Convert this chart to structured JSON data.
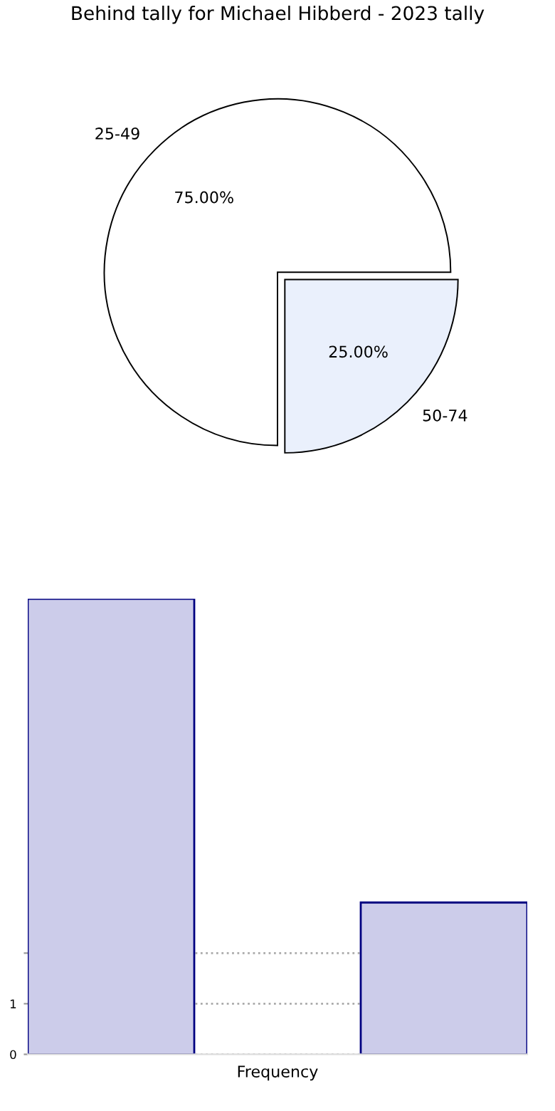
{
  "chart_data": [
    {
      "type": "pie",
      "title": "Behind tally for Michael Hibberd - 2023 tally",
      "categories": [
        "25-49",
        "50-74"
      ],
      "values": [
        75,
        25
      ],
      "colors": [
        "#ffffff",
        "#eaf0fc"
      ],
      "value_labels": [
        "75.00%",
        "25.00%"
      ]
    },
    {
      "type": "bar",
      "xlabel": "Frequency",
      "categories": [
        null,
        null,
        null
      ],
      "values": [
        9,
        null,
        3
      ],
      "color": "#ccccea",
      "ylim": [
        0,
        9
      ],
      "yticks": [
        0,
        1,
        {
          "value": 2,
          "label": null
        }
      ],
      "grid": "y"
    }
  ]
}
